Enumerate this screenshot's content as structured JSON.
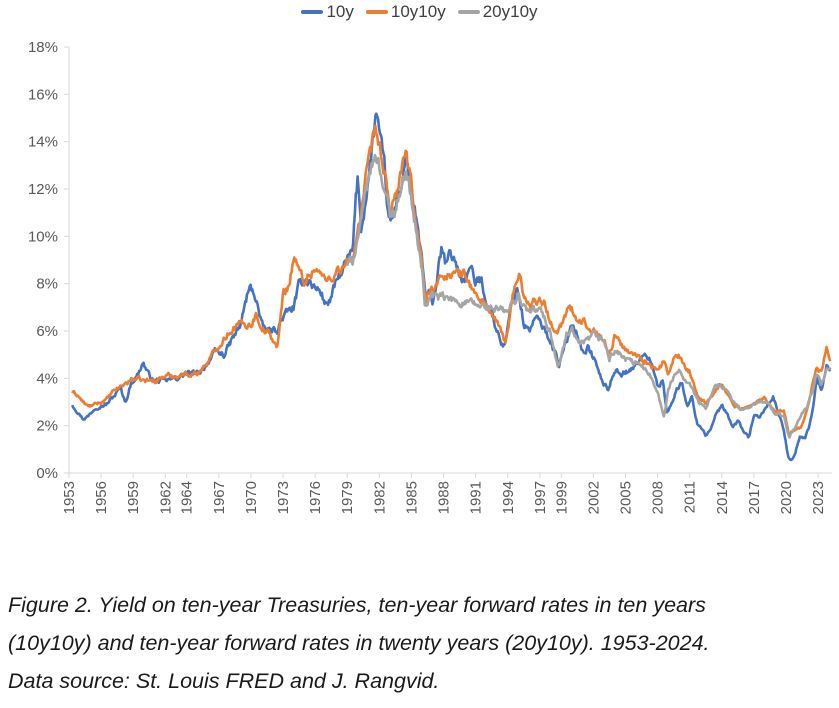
{
  "chart_data": {
    "type": "line",
    "title": "",
    "xlabel": "",
    "ylabel": "",
    "xlim": [
      1953,
      2024.3
    ],
    "ylim": [
      0,
      18
    ],
    "y_ticks": [
      0,
      2,
      4,
      6,
      8,
      10,
      12,
      14,
      16,
      18
    ],
    "y_tick_labels": [
      "0%",
      "2%",
      "4%",
      "6%",
      "8%",
      "10%",
      "12%",
      "14%",
      "16%",
      "18%"
    ],
    "x_ticks": [
      1953,
      1956,
      1959,
      1962,
      1964,
      1967,
      1970,
      1973,
      1976,
      1979,
      1982,
      1985,
      1988,
      1991,
      1994,
      1997,
      1999,
      2002,
      2005,
      2008,
      2011,
      2014,
      2017,
      2020,
      2023
    ],
    "x_tick_labels": [
      "1953",
      "1956",
      "1959",
      "1962",
      "1964",
      "1967",
      "1970",
      "1973",
      "1976",
      "1979",
      "1982",
      "1985",
      "1988",
      "1991",
      "1994",
      "1997",
      "1999",
      "2002",
      "2005",
      "2008",
      "2011",
      "2014",
      "2017",
      "2020",
      "2023"
    ],
    "grid": false,
    "legend_position": "top-center",
    "series": [
      {
        "name": "10y",
        "color": "#4472C4",
        "x": [
          1953.3,
          1953.8,
          1954.3,
          1954.8,
          1955.5,
          1956.5,
          1957.3,
          1957.8,
          1958.3,
          1958.8,
          1959.5,
          1959.9,
          1960.5,
          1961.0,
          1962.0,
          1963.0,
          1964.0,
          1965.0,
          1965.5,
          1966.0,
          1966.7,
          1967.5,
          1968.2,
          1969.0,
          1969.7,
          1970.0,
          1970.5,
          1971.0,
          1971.5,
          1972.0,
          1972.5,
          1973.0,
          1973.5,
          1974.0,
          1974.5,
          1975.0,
          1975.5,
          1976.0,
          1976.5,
          1977.0,
          1977.5,
          1978.0,
          1978.5,
          1979.0,
          1979.5,
          1979.8,
          1980.0,
          1980.3,
          1980.6,
          1981.0,
          1981.4,
          1981.7,
          1982.0,
          1982.5,
          1982.9,
          1983.3,
          1983.8,
          1984.2,
          1984.5,
          1985.0,
          1985.5,
          1986.0,
          1986.3,
          1986.7,
          1987.0,
          1987.5,
          1987.8,
          1988.2,
          1988.6,
          1989.0,
          1989.5,
          1990.0,
          1990.5,
          1991.0,
          1991.5,
          1992.0,
          1992.5,
          1993.0,
          1993.5,
          1993.8,
          1994.3,
          1994.9,
          1995.5,
          1996.0,
          1996.5,
          1997.0,
          1997.5,
          1998.0,
          1998.8,
          1999.5,
          2000.0,
          2000.5,
          2001.0,
          2001.5,
          2002.0,
          2002.8,
          2003.4,
          2004.0,
          2004.6,
          2005.0,
          2005.5,
          2006.0,
          2006.5,
          2007.0,
          2007.5,
          2008.0,
          2008.5,
          2008.9,
          2009.3,
          2009.8,
          2010.3,
          2010.8,
          2011.2,
          2011.7,
          2012.0,
          2012.5,
          2013.0,
          2013.5,
          2014.0,
          2014.5,
          2015.0,
          2015.5,
          2016.0,
          2016.5,
          2017.0,
          2017.5,
          2018.0,
          2018.8,
          2019.3,
          2019.8,
          2020.2,
          2020.5,
          2020.9,
          2021.3,
          2021.8,
          2022.2,
          2022.6,
          2022.9,
          2023.3,
          2023.8,
          2024.2
        ],
        "values": [
          2.9,
          2.6,
          2.3,
          2.4,
          2.8,
          2.9,
          3.3,
          3.6,
          3.0,
          3.8,
          4.2,
          4.7,
          4.1,
          3.9,
          3.9,
          4.0,
          4.2,
          4.2,
          4.4,
          4.7,
          5.1,
          5.0,
          5.6,
          6.2,
          7.6,
          7.8,
          7.4,
          6.2,
          6.0,
          6.0,
          6.1,
          6.6,
          6.8,
          7.0,
          7.9,
          8.2,
          8.1,
          7.8,
          7.7,
          7.1,
          7.4,
          8.1,
          8.5,
          9.0,
          9.3,
          11.5,
          12.5,
          10.3,
          11.2,
          12.5,
          14.0,
          15.3,
          14.2,
          12.8,
          10.5,
          10.8,
          11.8,
          12.5,
          13.5,
          11.5,
          10.5,
          9.0,
          7.4,
          7.5,
          7.2,
          8.5,
          9.4,
          8.8,
          9.2,
          9.1,
          8.3,
          8.2,
          8.7,
          8.0,
          8.2,
          7.3,
          6.8,
          6.0,
          5.4,
          5.5,
          7.0,
          7.9,
          6.3,
          6.0,
          6.5,
          6.4,
          6.0,
          5.6,
          4.6,
          5.5,
          6.4,
          5.9,
          5.1,
          5.3,
          4.9,
          3.9,
          3.5,
          4.4,
          4.2,
          4.3,
          4.3,
          4.6,
          4.9,
          4.9,
          4.7,
          3.6,
          3.9,
          2.5,
          3.0,
          3.5,
          3.8,
          2.8,
          3.2,
          2.1,
          2.0,
          1.6,
          1.9,
          2.5,
          2.8,
          2.5,
          1.9,
          2.2,
          1.8,
          1.5,
          2.4,
          2.3,
          2.7,
          3.2,
          2.5,
          1.8,
          0.7,
          0.6,
          0.9,
          1.6,
          1.5,
          2.0,
          3.0,
          4.0,
          3.5,
          4.5,
          4.3
        ],
        "smooth_amplitude": 0.55,
        "noise": 0.18
      },
      {
        "name": "10y10y",
        "color": "#ED7D31",
        "x": [
          1953.3,
          1953.8,
          1954.3,
          1954.8,
          1955.5,
          1956.5,
          1957.3,
          1958.0,
          1959.0,
          1960.0,
          1961.0,
          1962.0,
          1963.0,
          1964.0,
          1965.0,
          1966.0,
          1967.0,
          1968.0,
          1969.0,
          1970.0,
          1970.5,
          1971.0,
          1971.8,
          1972.5,
          1973.0,
          1973.6,
          1974.0,
          1974.5,
          1975.0,
          1976.0,
          1977.0,
          1978.0,
          1979.0,
          1979.5,
          1980.0,
          1980.3,
          1980.8,
          1981.2,
          1981.7,
          1982.0,
          1982.5,
          1983.0,
          1983.5,
          1984.0,
          1984.5,
          1985.0,
          1985.5,
          1986.0,
          1986.3,
          1986.8,
          1987.5,
          1988.0,
          1989.0,
          1990.0,
          1991.0,
          1992.0,
          1993.0,
          1993.8,
          1994.5,
          1995.0,
          1995.5,
          1996.0,
          1996.5,
          1997.0,
          1997.5,
          1998.0,
          1998.7,
          1999.5,
          2000.0,
          2000.5,
          2001.0,
          2002.0,
          2003.0,
          2003.5,
          2004.0,
          2005.0,
          2006.0,
          2007.0,
          2008.0,
          2008.6,
          2009.0,
          2009.5,
          2010.0,
          2010.5,
          2011.0,
          2011.8,
          2012.5,
          2013.0,
          2013.8,
          2014.5,
          2015.0,
          2016.0,
          2017.0,
          2018.0,
          2019.0,
          2019.8,
          2020.3,
          2020.8,
          2021.5,
          2022.0,
          2022.5,
          2022.9,
          2023.3,
          2023.8,
          2024.2
        ],
        "values": [
          3.4,
          3.3,
          3.0,
          2.8,
          2.9,
          3.1,
          3.5,
          3.7,
          4.0,
          3.9,
          3.9,
          4.1,
          4.1,
          4.2,
          4.2,
          4.7,
          5.4,
          6.0,
          6.3,
          6.3,
          6.7,
          6.2,
          5.8,
          5.3,
          7.6,
          8.0,
          9.2,
          8.5,
          8.1,
          8.7,
          8.1,
          8.5,
          8.8,
          9.0,
          10.4,
          11.0,
          12.5,
          13.5,
          14.5,
          13.8,
          12.5,
          11.0,
          11.8,
          12.5,
          13.5,
          12.0,
          10.5,
          8.8,
          7.2,
          7.8,
          8.0,
          8.4,
          8.4,
          8.4,
          7.5,
          7.1,
          6.3,
          5.5,
          7.5,
          8.5,
          7.6,
          7.0,
          7.3,
          7.4,
          7.1,
          6.3,
          6.0,
          6.8,
          6.9,
          6.3,
          6.4,
          6.1,
          5.6,
          5.0,
          5.8,
          5.2,
          5.0,
          4.7,
          4.3,
          4.7,
          4.2,
          4.8,
          4.9,
          4.5,
          4.3,
          3.2,
          3.0,
          3.2,
          3.8,
          3.4,
          2.9,
          2.7,
          2.9,
          3.2,
          2.6,
          2.7,
          1.6,
          1.8,
          2.0,
          2.8,
          3.8,
          4.5,
          4.2,
          5.3,
          4.6
        ],
        "smooth_amplitude": 0.5,
        "noise": 0.17
      },
      {
        "name": "20y10y",
        "color": "#A5A5A5",
        "x": [
          1979.0,
          1979.5,
          1980.0,
          1980.3,
          1980.8,
          1981.2,
          1981.7,
          1982.0,
          1982.5,
          1983.0,
          1983.5,
          1984.0,
          1984.5,
          1985.0,
          1985.5,
          1986.0,
          1986.3,
          1986.8,
          1994.0,
          1994.5,
          1995.0,
          1995.5,
          1996.0,
          1997.0,
          1998.0,
          1998.7,
          1999.5,
          2000.0,
          2000.5,
          2001.0,
          2002.0,
          2003.0,
          2003.5,
          2004.0,
          2005.0,
          2006.0,
          2007.0,
          2008.0,
          2008.6,
          2009.0,
          2009.5,
          2010.0,
          2010.5,
          2011.0,
          2011.8,
          2012.5,
          2013.0,
          2013.8,
          2014.5,
          2015.0,
          2016.0,
          2017.0,
          2018.0,
          2019.0,
          2019.8,
          2020.3,
          2020.8,
          2021.5,
          2022.0,
          2022.5,
          2022.9,
          2023.3,
          2023.8,
          2024.2
        ],
        "values": [
          8.8,
          9.0,
          10.0,
          10.5,
          12.0,
          12.8,
          13.5,
          13.0,
          12.0,
          10.8,
          11.2,
          12.0,
          13.0,
          11.5,
          10.0,
          8.5,
          7.0,
          7.5,
          6.8,
          7.2,
          7.5,
          7.0,
          6.8,
          6.9,
          6.0,
          4.4,
          5.8,
          6.0,
          5.5,
          5.4,
          5.8,
          5.6,
          4.8,
          5.2,
          4.8,
          4.6,
          4.4,
          3.5,
          2.3,
          3.6,
          4.0,
          4.4,
          4.0,
          3.8,
          3.0,
          2.7,
          3.4,
          3.8,
          3.5,
          3.0,
          2.6,
          2.9,
          3.1,
          2.5,
          2.4,
          1.5,
          1.9,
          2.5,
          2.8,
          3.5,
          4.2,
          3.7,
          4.3,
          4.4
        ],
        "smooth_amplitude": 0.5,
        "noise": 0.17
      }
    ]
  },
  "legend": {
    "items": [
      {
        "label": "10y",
        "color": "#4472C4"
      },
      {
        "label": "10y10y",
        "color": "#ED7D31"
      },
      {
        "label": "20y10y",
        "color": "#A5A5A5"
      }
    ]
  },
  "caption": {
    "line1": "Figure 2. Yield on ten-year Treasuries, ten-year forward rates in ten years",
    "line2": "(10y10y) and ten-year forward rates in twenty years (20y10y). 1953-2024.",
    "line3": "Data source: St. Louis FRED and J. Rangvid."
  },
  "colors": {
    "axis": "#D9D9D9",
    "tick_text": "#595959"
  }
}
